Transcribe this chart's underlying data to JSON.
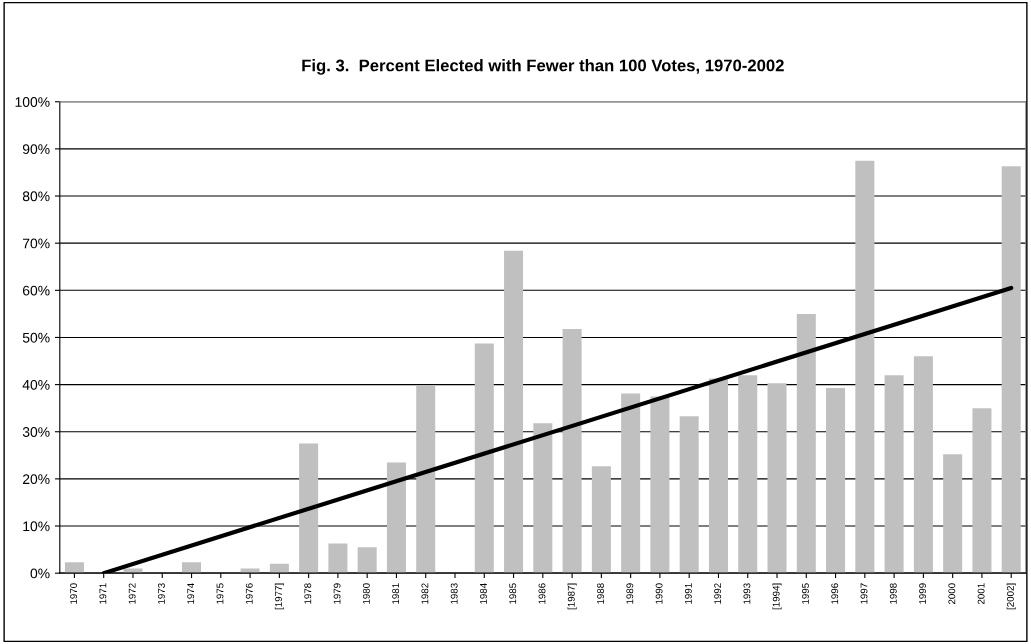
{
  "chart_data": {
    "type": "bar",
    "title": "Fig. 3.  Percent Elected with Fewer than 100 Votes, 1970-2002",
    "categories": [
      "1970",
      "1971",
      "1972",
      "1973",
      "1974",
      "1975",
      "1976",
      "[1977]",
      "1978",
      "1979",
      "1980",
      "1981",
      "1982",
      "1983",
      "1984",
      "1985",
      "1986",
      "[1987]",
      "1988",
      "1989",
      "1990",
      "1991",
      "1992",
      "1993",
      "[1994]",
      "1995",
      "1996",
      "1997",
      "1998",
      "1999",
      "2000",
      "2001",
      "[2002]"
    ],
    "series": [
      {
        "color": "#c0c0c0",
        "values": [
          2.3,
          0,
          1,
          0,
          2.3,
          0,
          1,
          2,
          27.5,
          6.3,
          5.5,
          23.5,
          39.8,
          0,
          48.7,
          68.4,
          31.8,
          51.8,
          22.7,
          38.1,
          37.5,
          33.3,
          41.3,
          42,
          40.3,
          55,
          39.3,
          87.5,
          42,
          46,
          25.2,
          35,
          86.3
        ]
      },
      {
        "type": "line",
        "color": "#000000",
        "values": [
          null,
          0,
          null,
          null,
          null,
          null,
          null,
          null,
          null,
          null,
          null,
          null,
          null,
          null,
          null,
          null,
          null,
          null,
          null,
          null,
          null,
          null,
          null,
          null,
          null,
          null,
          null,
          null,
          null,
          null,
          null,
          null,
          60.5
        ]
      }
    ],
    "ylim": [
      0,
      100
    ],
    "yticks": [
      {
        "value": 0,
        "label": "0%"
      },
      {
        "value": 10,
        "label": "10%"
      },
      {
        "value": 20,
        "label": "20%"
      },
      {
        "value": 30,
        "label": "30%"
      },
      {
        "value": 40,
        "label": "40%"
      },
      {
        "value": 50,
        "label": "50%"
      },
      {
        "value": 60,
        "label": "60%"
      },
      {
        "value": 70,
        "label": "70%"
      },
      {
        "value": 80,
        "label": "80%"
      },
      {
        "value": 90,
        "label": "90%"
      },
      {
        "value": 100,
        "label": "100%"
      }
    ],
    "grid": "y",
    "legend": false
  }
}
